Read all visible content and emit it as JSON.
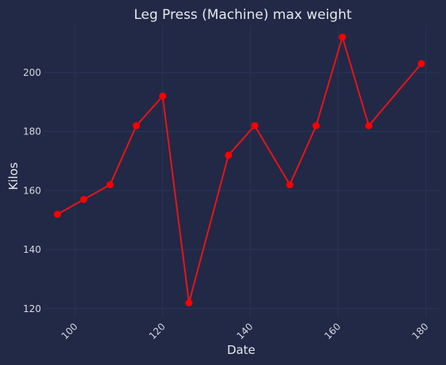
{
  "colors": {
    "background": "#212946",
    "plot_background": "#212946",
    "grid": "#2A3459",
    "line": "#E8141A",
    "marker": "#FF0000",
    "text": "#E8E8EC",
    "tick_text": "#D8D8DF"
  },
  "chart_data": {
    "type": "line",
    "title": "Leg Press (Machine) max weight",
    "xlabel": "Date",
    "ylabel": "Kilos",
    "x_ticks": [
      100,
      120,
      140,
      160,
      180
    ],
    "y_ticks": [
      120,
      140,
      160,
      180,
      200
    ],
    "xlim": [
      93,
      183
    ],
    "ylim": [
      117,
      216
    ],
    "grid": true,
    "series": [
      {
        "x": [
          96,
          102,
          108,
          114,
          120,
          126,
          135,
          141,
          149,
          155,
          161,
          167,
          179
        ],
        "y": [
          152,
          157,
          162,
          182,
          192,
          122,
          172,
          182,
          162,
          182,
          212,
          182,
          203
        ]
      }
    ]
  }
}
